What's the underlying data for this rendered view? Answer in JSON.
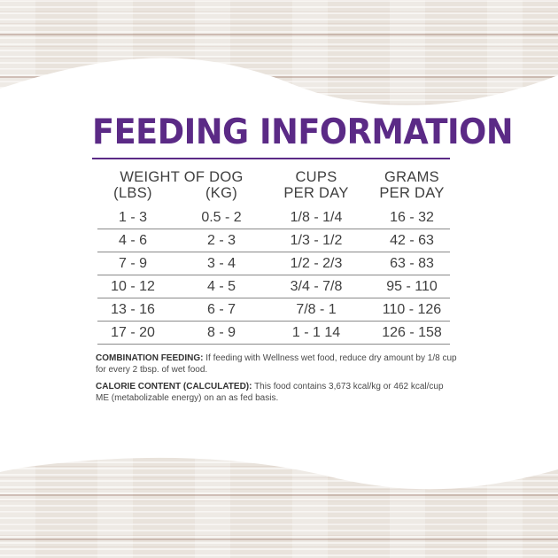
{
  "title": "FEEDING INFORMATION",
  "table": {
    "headers": {
      "weight": "WEIGHT OF DOG",
      "lbs": "(LBS)",
      "kg": "(KG)",
      "cups_1": "CUPS",
      "cups_2": "PER DAY",
      "grams_1": "GRAMS",
      "grams_2": "PER DAY"
    },
    "rows": [
      [
        "1 - 3",
        "0.5 - 2",
        "1/8 - 1/4",
        "16 - 32"
      ],
      [
        "4 - 6",
        "2 - 3",
        "1/3 - 1/2",
        "42 - 63"
      ],
      [
        "7 - 9",
        "3 - 4",
        "1/2 - 2/3",
        "63 - 83"
      ],
      [
        "10 - 12",
        "4 - 5",
        "3/4 - 7/8",
        "95 - 110"
      ],
      [
        "13 - 16",
        "6 - 7",
        "7/8 - 1",
        "110 - 126"
      ],
      [
        "17 - 20",
        "8 - 9",
        "1 - 1 14",
        "126 - 158"
      ]
    ]
  },
  "notes": {
    "combo_label": "COMBINATION FEEDING:",
    "combo_text": " If feeding with Wellness wet food, reduce dry amount by 1/8 cup for every 2 tbsp. of wet food.",
    "calorie_label": "CALORIE CONTENT (CALCULATED):",
    "calorie_text": " This food contains 3,673 kcal/kg or 462 kcal/cup ME (metabolizable energy) on an as fed basis."
  },
  "colors": {
    "brand_purple": "#5b2a86",
    "text": "#3f3f3f",
    "wood": "#e9e3dc"
  }
}
